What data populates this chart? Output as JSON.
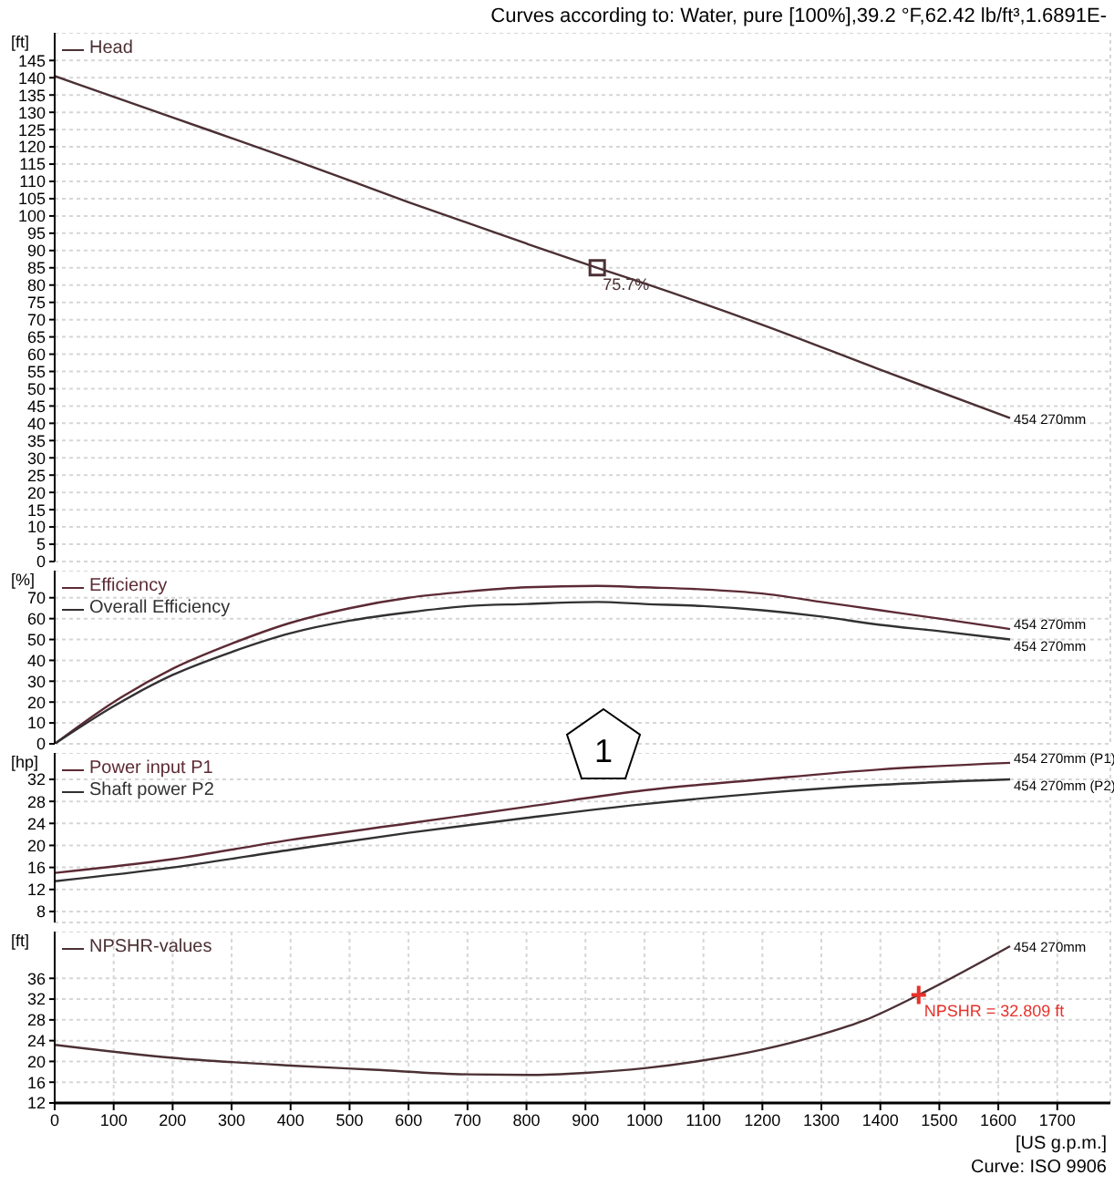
{
  "chart_data": [
    {
      "type": "line",
      "title": "Curves according to: Water, pure [100%],39.2 °F,62.42 lb/ft³,1.6891E-",
      "ylabel": "[ft]",
      "xlim": [
        0,
        1790
      ],
      "xticks": [
        0,
        100,
        200,
        300,
        400,
        500,
        600,
        700,
        800,
        900,
        1000,
        1100,
        1200,
        1300,
        1400,
        1500,
        1600,
        1700
      ],
      "ylim": [
        0,
        153
      ],
      "yticks": [
        0,
        5,
        10,
        15,
        20,
        25,
        30,
        35,
        40,
        45,
        50,
        55,
        60,
        65,
        70,
        75,
        80,
        85,
        90,
        95,
        100,
        105,
        110,
        115,
        120,
        125,
        130,
        135,
        140,
        145
      ],
      "grid": true,
      "legend": "top left",
      "tick_labels": "y",
      "marker": "none",
      "line_style": "solid",
      "series": [
        {
          "name": "Head",
          "color": "#4b3034",
          "x": [
            0,
            200,
            400,
            600,
            800,
            920,
            1000,
            1200,
            1400,
            1620
          ],
          "values": [
            140.5,
            128.5,
            116.5,
            104,
            92,
            85,
            80.5,
            68.5,
            55.5,
            41.5
          ]
        },
        {
          "type": "scatter",
          "color": "#4b3034",
          "marker": "square",
          "x": [
            920
          ],
          "values": [
            85
          ]
        }
      ],
      "annotations": [
        {
          "text": "75.7%",
          "x": 920,
          "y": 85
        },
        {
          "text": "454 270mm",
          "x": 1620,
          "y": 41.5
        }
      ]
    },
    {
      "type": "line",
      "ylabel": "[%]",
      "xlim": [
        0,
        1790
      ],
      "xticks": [
        0,
        100,
        200,
        300,
        400,
        500,
        600,
        700,
        800,
        900,
        1000,
        1100,
        1200,
        1300,
        1400,
        1500,
        1600,
        1700
      ],
      "ylim": [
        0,
        83
      ],
      "yticks": [
        0,
        10,
        20,
        30,
        40,
        50,
        60,
        70
      ],
      "grid": true,
      "legend": "top left",
      "tick_labels": "y",
      "marker": "none",
      "line_style": "solid",
      "series": [
        {
          "name": "Efficiency",
          "color": "#5c2a34",
          "x": [
            0,
            100,
            200,
            300,
            400,
            500,
            600,
            700,
            800,
            920,
            1000,
            1100,
            1200,
            1300,
            1400,
            1500,
            1620
          ],
          "values": [
            0,
            20,
            36,
            48,
            58,
            65,
            70,
            73,
            75,
            75.7,
            75,
            74,
            72,
            68,
            64,
            60,
            55
          ]
        },
        {
          "name": "Overall Efficiency",
          "color": "#333033",
          "x": [
            0,
            100,
            200,
            300,
            400,
            500,
            600,
            700,
            800,
            920,
            1000,
            1100,
            1200,
            1300,
            1400,
            1500,
            1620
          ],
          "values": [
            0,
            18,
            33,
            44,
            53,
            59,
            63,
            66,
            67,
            68,
            67,
            66,
            64,
            61,
            57,
            54,
            50
          ]
        }
      ],
      "annotations": [
        {
          "text": "454 270mm",
          "x": 1620,
          "y": 55
        },
        {
          "text": "454 270mm",
          "x": 1620,
          "y": 50
        },
        "1"
      ]
    },
    {
      "type": "line",
      "ylabel": "[hp]",
      "xlim": [
        0,
        1790
      ],
      "xticks": [
        0,
        100,
        200,
        300,
        400,
        500,
        600,
        700,
        800,
        900,
        1000,
        1100,
        1200,
        1300,
        1400,
        1500,
        1600,
        1700
      ],
      "ylim": [
        6,
        36.8
      ],
      "yticks": [
        8,
        12,
        16,
        20,
        24,
        28,
        32
      ],
      "grid": true,
      "legend": "top left",
      "tick_labels": "y",
      "marker": "none",
      "line_style": "solid",
      "series": [
        {
          "name": "Power input P1",
          "color": "#5c2a34",
          "x": [
            0,
            200,
            400,
            600,
            800,
            1000,
            1200,
            1400,
            1620
          ],
          "values": [
            15,
            17.5,
            21,
            24,
            27,
            30,
            32,
            33.8,
            35
          ]
        },
        {
          "name": "Shaft power P2",
          "color": "#333033",
          "x": [
            0,
            200,
            400,
            600,
            800,
            1000,
            1200,
            1400,
            1620
          ],
          "values": [
            13.5,
            16,
            19.2,
            22.3,
            25,
            27.5,
            29.5,
            31,
            32
          ]
        }
      ],
      "annotations": [
        {
          "text": "454 270mm (P1)",
          "x": 1620,
          "y": 35
        },
        {
          "text": "454 270mm (P2)",
          "x": 1620,
          "y": 32
        }
      ]
    },
    {
      "type": "line",
      "ylabel": "[ft]",
      "xlabel": "[US g.p.m.]",
      "xlim": [
        0,
        1790
      ],
      "xticks": [
        0,
        100,
        200,
        300,
        400,
        500,
        600,
        700,
        800,
        900,
        1000,
        1100,
        1200,
        1300,
        1400,
        1500,
        1600,
        1700
      ],
      "ylim": [
        12,
        45
      ],
      "yticks": [
        12,
        16,
        20,
        24,
        28,
        32,
        36
      ],
      "grid": true,
      "legend": "top left",
      "marker": "none",
      "line_style": "solid",
      "series": [
        {
          "name": "NPSHR-values",
          "color": "#4b3034",
          "x": [
            0,
            200,
            400,
            540,
            700,
            800,
            900,
            1000,
            1100,
            1200,
            1300,
            1375,
            1465,
            1620
          ],
          "values": [
            23.2,
            20.7,
            19.2,
            18.4,
            17.5,
            17.4,
            17.8,
            18.7,
            20.2,
            22.3,
            25.2,
            28,
            32.809,
            42.2
          ]
        },
        {
          "type": "scatter",
          "color": "#e8312a",
          "marker": "cross",
          "x": [
            1465
          ],
          "values": [
            32.809
          ]
        }
      ],
      "annotations": [
        {
          "text": "NPSHR = 32.809 ft",
          "x": 1465,
          "y": 32.809
        },
        {
          "text": "454 270mm",
          "x": 1620,
          "y": 42.2
        },
        "Curve: ISO 9906"
      ]
    }
  ]
}
